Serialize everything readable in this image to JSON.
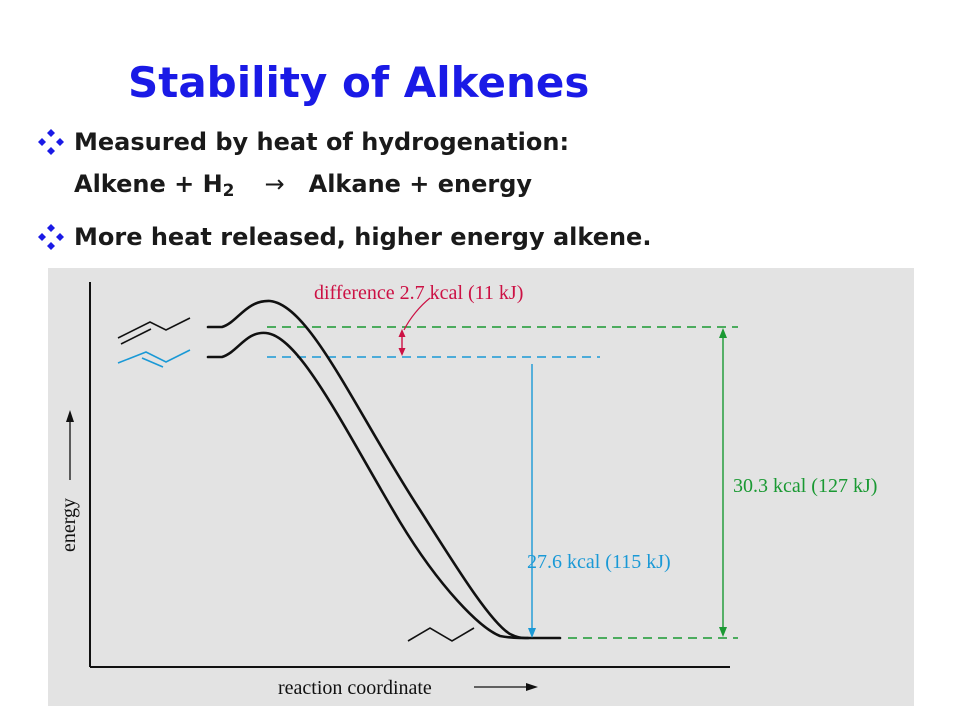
{
  "title": "Stability of Alkenes",
  "bullets": {
    "first": "Measured by heat of hydrogenation:",
    "equation": {
      "lhs": "Alkene + H",
      "sub": "2",
      "arrow": "→",
      "rhs": "Alkane + energy"
    },
    "second": "More heat released, higher energy alkene."
  },
  "diagram": {
    "y_axis_label": "energy",
    "x_axis_label": "reaction coordinate",
    "difference_label": "difference 2.7 kcal (11 kJ)",
    "blue_label": "27.6 kcal (115 kJ)",
    "green_label": "30.3 kcal (127 kJ)"
  },
  "colors": {
    "title": "#1a1ae6",
    "bullet": "#1a1ae6",
    "panel": "#e3e3e3",
    "red": "#cc1144",
    "blue": "#1a99d6",
    "green": "#1a9933"
  }
}
